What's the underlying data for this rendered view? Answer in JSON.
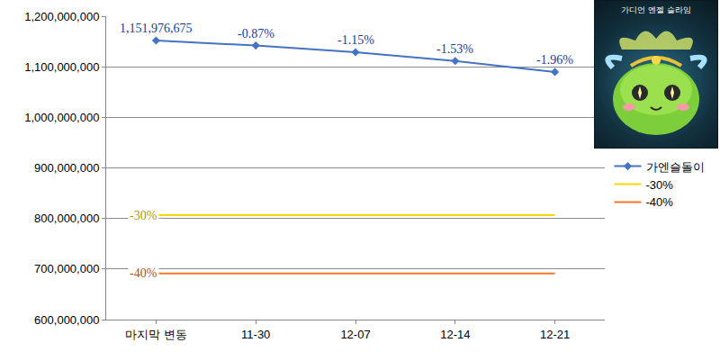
{
  "chart_data": {
    "type": "line",
    "categories": [
      "마지막 변동",
      "11-30",
      "12-07",
      "12-14",
      "12-21"
    ],
    "series": [
      {
        "name": "가엔슬돌이",
        "color": "#4472c4",
        "marker": "diamond",
        "values": [
          1151976675,
          1141954578,
          1128822100,
          1111551122,
          1089764720
        ]
      },
      {
        "name": "-30%",
        "color": "#ffd700",
        "marker": "none",
        "values": [
          806383673,
          806383673,
          806383673,
          806383673,
          806383673
        ]
      },
      {
        "name": "-40%",
        "color": "#f4792b",
        "marker": "none",
        "values": [
          691186005,
          691186005,
          691186005,
          691186005,
          691186005
        ]
      }
    ],
    "annotations": [
      {
        "category": "마지막 변동",
        "text": "1,151,976,675",
        "series": "가엔슬돌이"
      },
      {
        "category": "11-30",
        "text": "-0.87%",
        "series": "가엔슬돌이"
      },
      {
        "category": "12-07",
        "text": "-1.15%",
        "series": "가엔슬돌이"
      },
      {
        "category": "12-14",
        "text": "-1.53%",
        "series": "가엔슬돌이"
      },
      {
        "category": "12-21",
        "text": "-1.96%",
        "series": "가엔슬돌이"
      },
      {
        "category": "마지막 변동",
        "text": "-30%",
        "series": "-30%"
      },
      {
        "category": "마지막 변동",
        "text": "-40%",
        "series": "-40%"
      }
    ],
    "ylim": [
      600000000,
      1200000000
    ],
    "yticks": [
      {
        "value": 600000000,
        "label": "600,000,000"
      },
      {
        "value": 700000000,
        "label": "700,000,000"
      },
      {
        "value": 800000000,
        "label": "800,000,000"
      },
      {
        "value": 900000000,
        "label": "900,000,000"
      },
      {
        "value": 1000000000,
        "label": "1,000,000,000"
      },
      {
        "value": 1100000000,
        "label": "1,100,000,000"
      },
      {
        "value": 1200000000,
        "label": "1,200,000,000"
      }
    ],
    "grid": true,
    "legend": "right",
    "image_caption": "가디언 엔젤 슬라임"
  }
}
